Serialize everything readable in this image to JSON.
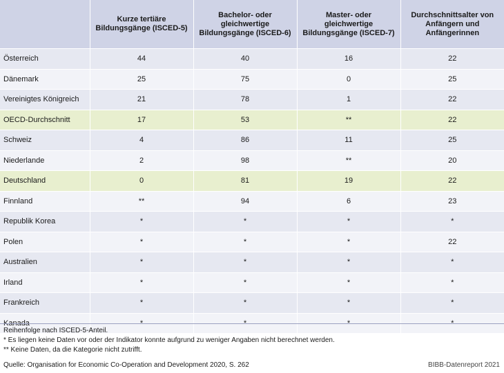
{
  "table": {
    "headers": [
      "",
      "Kurze tertiäre Bildungsgänge (ISCED-5)",
      "Bachelor- oder gleichwertige Bildungsgänge (ISCED-6)",
      "Master- oder gleichwertige Bildungsgänge (ISCED-7)",
      "Durchschnittsalter von Anfängern und Anfängerinnen"
    ],
    "rows": [
      {
        "label": "Österreich",
        "cells": [
          "44",
          "40",
          "16",
          "22"
        ],
        "highlight": false
      },
      {
        "label": "Dänemark",
        "cells": [
          "25",
          "75",
          "0",
          "25"
        ],
        "highlight": false
      },
      {
        "label": "Vereinigtes Königreich",
        "cells": [
          "21",
          "78",
          "1",
          "22"
        ],
        "highlight": false
      },
      {
        "label": "OECD-Durchschnitt",
        "cells": [
          "17",
          "53",
          "**",
          "22"
        ],
        "highlight": true
      },
      {
        "label": "Schweiz",
        "cells": [
          "4",
          "86",
          "11",
          "25"
        ],
        "highlight": false
      },
      {
        "label": "Niederlande",
        "cells": [
          "2",
          "98",
          "**",
          "20"
        ],
        "highlight": false
      },
      {
        "label": "Deutschland",
        "cells": [
          "0",
          "81",
          "19",
          "22"
        ],
        "highlight": true
      },
      {
        "label": "Finnland",
        "cells": [
          "**",
          "94",
          "6",
          "23"
        ],
        "highlight": false
      },
      {
        "label": "Republik Korea",
        "cells": [
          "*",
          "*",
          "*",
          "*"
        ],
        "highlight": false
      },
      {
        "label": "Polen",
        "cells": [
          "*",
          "*",
          "*",
          "22"
        ],
        "highlight": false
      },
      {
        "label": "Australien",
        "cells": [
          "*",
          "*",
          "*",
          "*"
        ],
        "highlight": false
      },
      {
        "label": "Irland",
        "cells": [
          "*",
          "*",
          "*",
          "*"
        ],
        "highlight": false
      },
      {
        "label": "Frankreich",
        "cells": [
          "*",
          "*",
          "*",
          "*"
        ],
        "highlight": false
      },
      {
        "label": "Kanada",
        "cells": [
          "*",
          "*",
          "*",
          "*"
        ],
        "highlight": false
      }
    ]
  },
  "notes": [
    "Reihenfolge nach ISCED-5-Anteil.",
    "* Es liegen keine Daten vor oder der Indikator konnte aufgrund zu weniger Angaben nicht berechnet werden.",
    "** Keine Daten, da die Kategorie nicht zutrifft."
  ],
  "source": "Quelle: Organisation for Economic Co-Operation and Development 2020, S. 262",
  "credit": "BIBB-Datenreport 2021",
  "colors": {
    "header": "#cfd3e6",
    "row_odd": "#e6e8f1",
    "row_even": "#f2f3f8",
    "highlight": "#e8efcf"
  }
}
